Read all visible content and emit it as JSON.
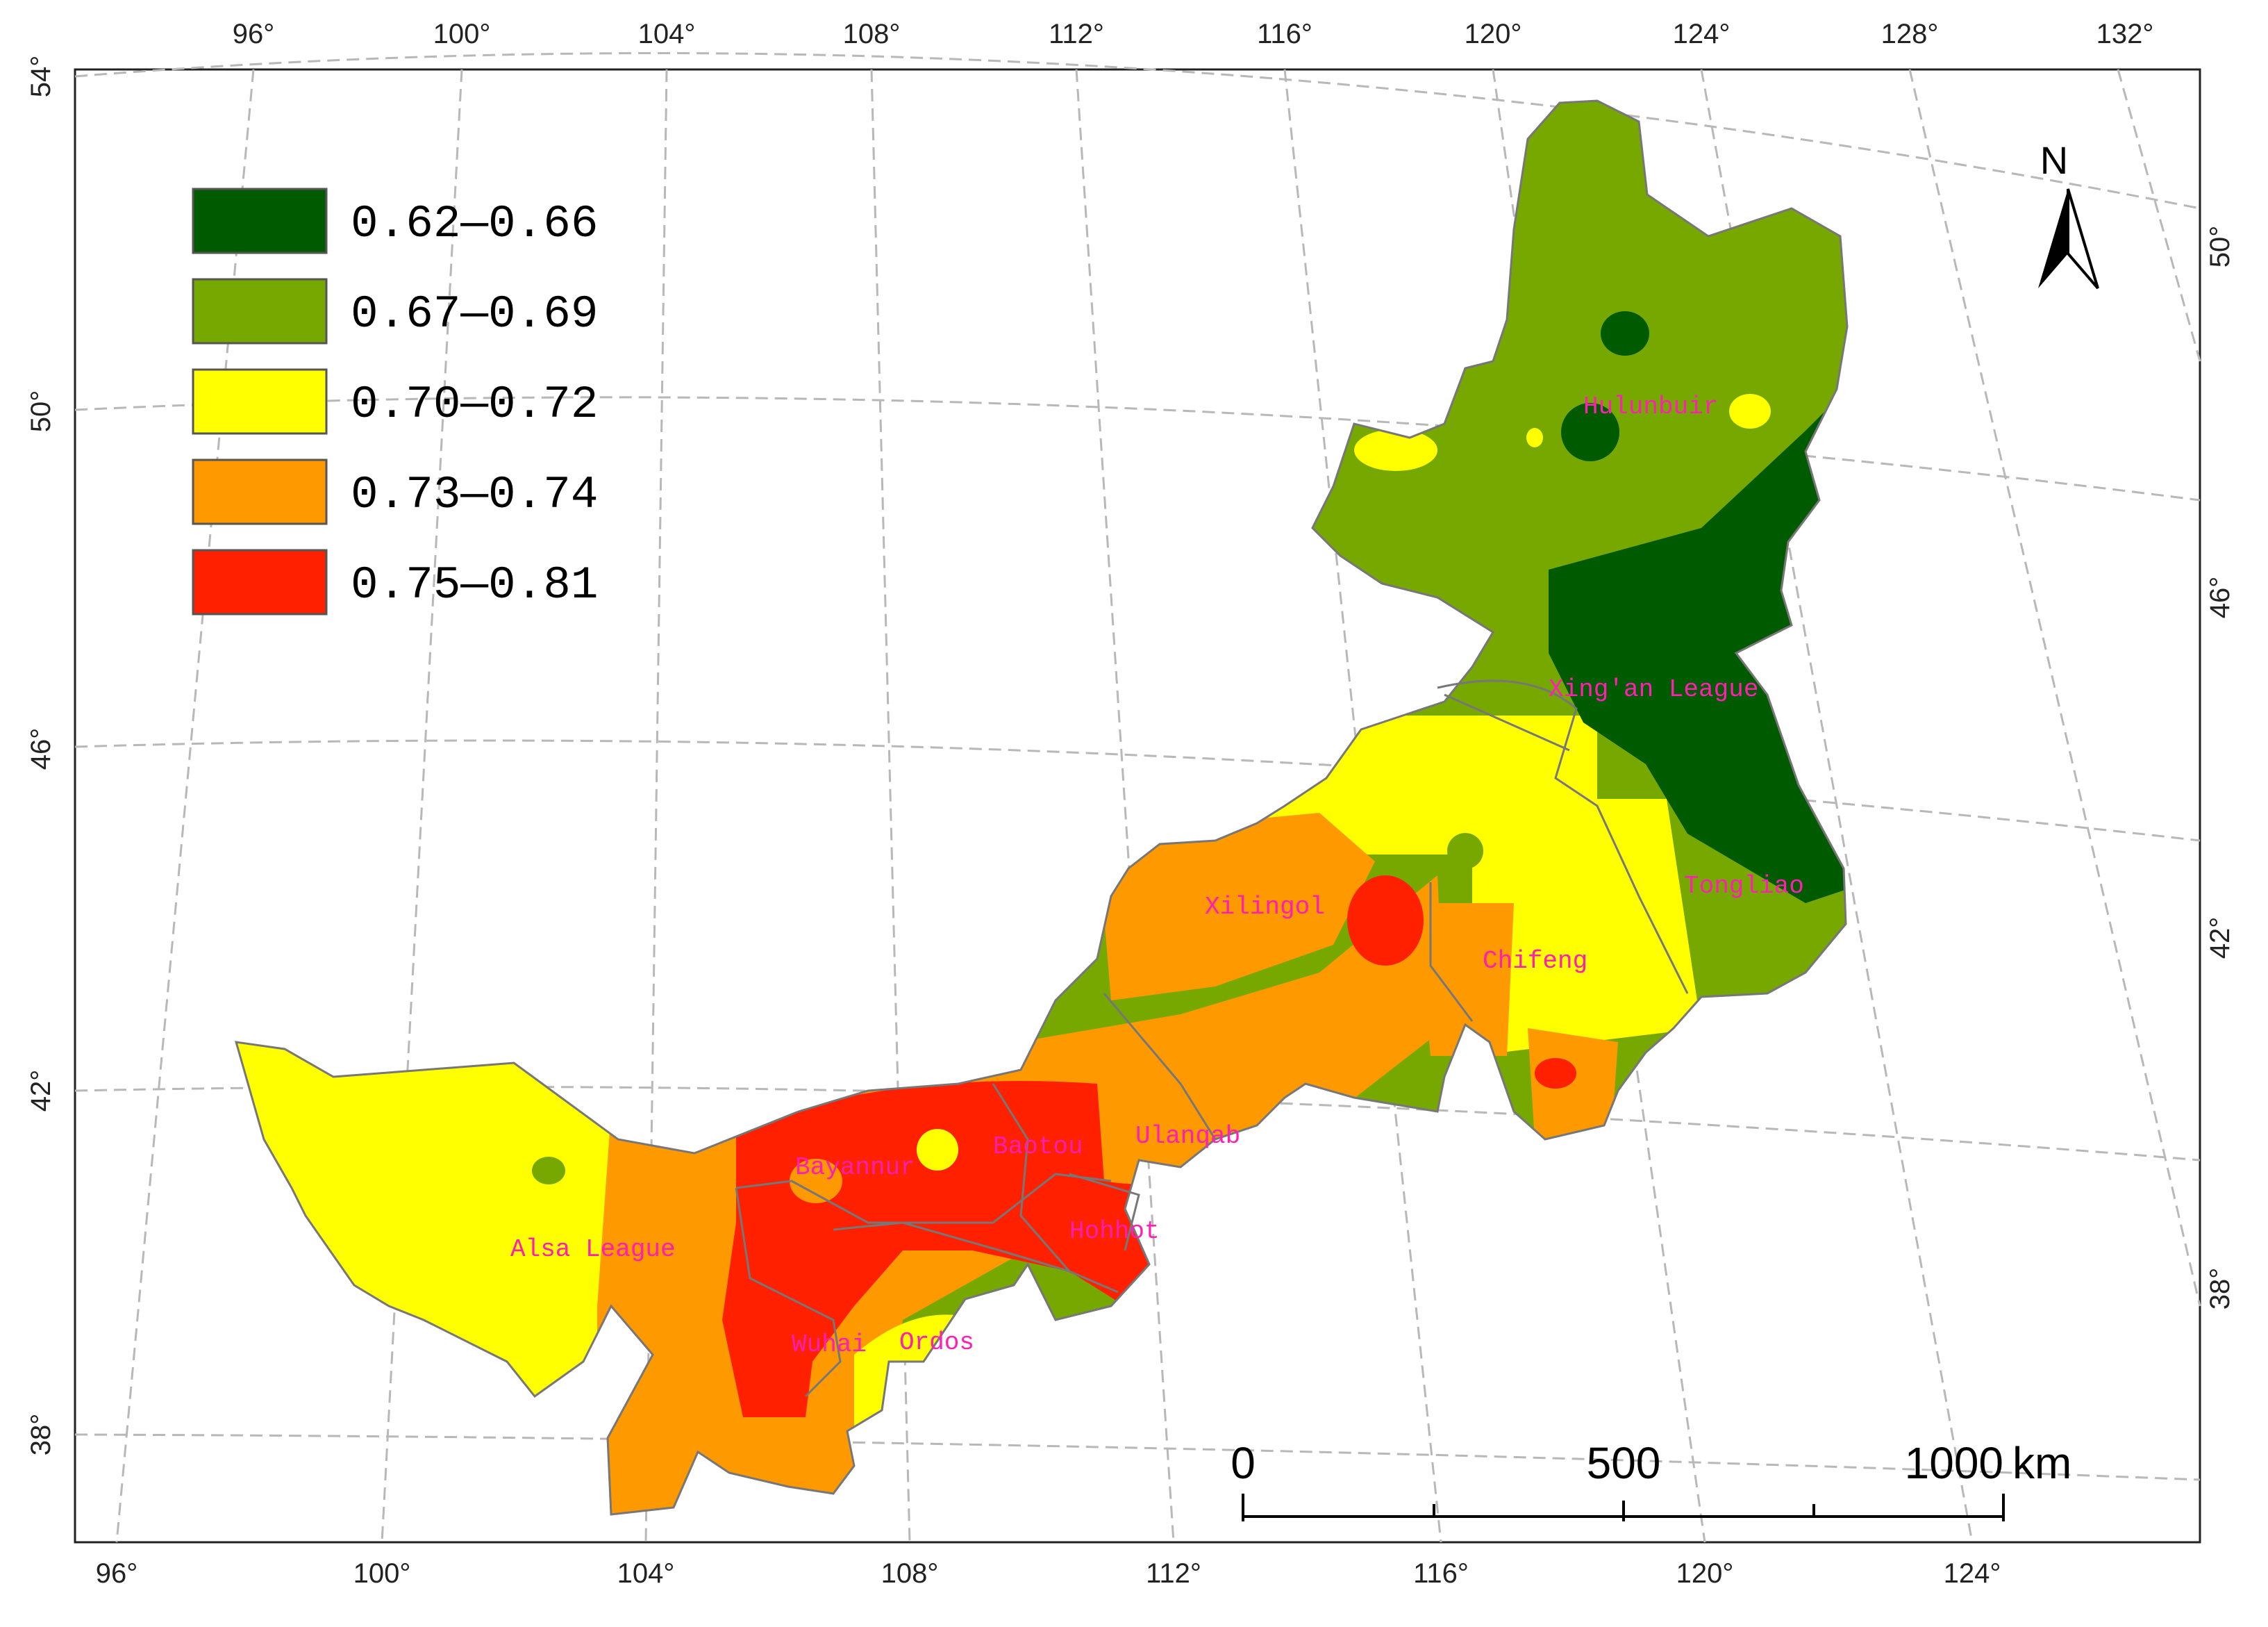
{
  "colors": {
    "class_1": "#005a00",
    "class_2": "#76a800",
    "class_3": "#ffff00",
    "class_4": "#ff9900",
    "class_5": "#ff2000",
    "label": "#ff1fb0"
  },
  "legend": [
    {
      "label": "0.62—0.66",
      "color": "#005a00"
    },
    {
      "label": "0.67—0.69",
      "color": "#76a800"
    },
    {
      "label": "0.70—0.72",
      "color": "#ffff00"
    },
    {
      "label": "0.73—0.74",
      "color": "#ff9900"
    },
    {
      "label": "0.75—0.81",
      "color": "#ff2000"
    }
  ],
  "ticks": {
    "top": [
      "96°",
      "100°",
      "104°",
      "108°",
      "112°",
      "116°",
      "120°",
      "124°",
      "128°",
      "132°"
    ],
    "bottom": [
      "96°",
      "100°",
      "104°",
      "108°",
      "112°",
      "116°",
      "120°",
      "124°"
    ],
    "left": [
      "54°",
      "50°",
      "46°",
      "42°",
      "38°"
    ],
    "right": [
      "50°",
      "46°",
      "42°",
      "38°"
    ]
  },
  "regions": [
    "Hulunbuir",
    "Xing'an League",
    "Tongliao",
    "Xilingol",
    "Chifeng",
    "Ulanqab",
    "Baotou",
    "Bayannur",
    "Hohhot",
    "Alsa League",
    "Wuhai",
    "Ordos"
  ],
  "north_arrow": {
    "label": "N",
    "icon": "north-arrow-icon"
  },
  "scale_bar": {
    "labels": [
      "0",
      "500",
      "1000"
    ],
    "unit": "km"
  }
}
